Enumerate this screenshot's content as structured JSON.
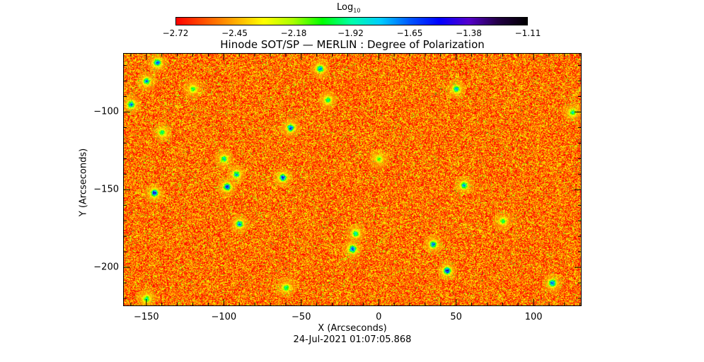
{
  "chart_data": {
    "type": "heatmap",
    "title": "Hinode SOT/SP — MERLIN : Degree of Polarization",
    "xlabel": "X (Arcseconds)",
    "ylabel": "Y (Arcseconds)",
    "xlim": [
      -165,
      131
    ],
    "ylim": [
      -225,
      -62
    ],
    "x_ticks": [
      -150,
      -100,
      -50,
      0,
      50,
      100
    ],
    "y_ticks": [
      -100,
      -150,
      -200
    ],
    "x_tick_labels": [
      "−150",
      "−100",
      "−50",
      "0",
      "50",
      "100"
    ],
    "y_tick_labels": [
      "−100",
      "−150",
      "−200"
    ],
    "colorbar": {
      "label_main": "Log",
      "label_sub": "10",
      "scale": "log10",
      "range": [
        -2.72,
        -1.11
      ],
      "ticks": [
        -2.72,
        -2.45,
        -2.18,
        -1.92,
        -1.65,
        -1.38,
        -1.11
      ],
      "tick_labels": [
        "−2.72",
        "−2.45",
        "−2.18",
        "−1.92",
        "−1.65",
        "−1.38",
        "−1.11"
      ],
      "colormap": [
        "#ff0000",
        "#ff5500",
        "#ffaa00",
        "#ffff00",
        "#aaff00",
        "#00ff00",
        "#00ffaa",
        "#00ccff",
        "#0055ff",
        "#0000ff",
        "#5500cc",
        "#220044",
        "#000000"
      ]
    },
    "background_level": -2.55,
    "features": [
      {
        "x": -143,
        "y": -68,
        "value": -1.4
      },
      {
        "x": -150,
        "y": -80,
        "value": -1.6
      },
      {
        "x": -160,
        "y": -95,
        "value": -1.5
      },
      {
        "x": -140,
        "y": -113,
        "value": -1.8
      },
      {
        "x": -145,
        "y": -152,
        "value": -1.3
      },
      {
        "x": -120,
        "y": -85,
        "value": -1.9
      },
      {
        "x": -100,
        "y": -130,
        "value": -1.7
      },
      {
        "x": -98,
        "y": -148,
        "value": -1.3
      },
      {
        "x": -92,
        "y": -140,
        "value": -1.6
      },
      {
        "x": -90,
        "y": -172,
        "value": -1.5
      },
      {
        "x": -62,
        "y": -142,
        "value": -1.35
      },
      {
        "x": -57,
        "y": -110,
        "value": -1.4
      },
      {
        "x": -38,
        "y": -72,
        "value": -1.5
      },
      {
        "x": -33,
        "y": -92,
        "value": -1.8
      },
      {
        "x": -15,
        "y": -178,
        "value": -1.7
      },
      {
        "x": -17,
        "y": -188,
        "value": -1.3
      },
      {
        "x": 35,
        "y": -185,
        "value": -1.5
      },
      {
        "x": 44,
        "y": -202,
        "value": -1.2
      },
      {
        "x": 50,
        "y": -85,
        "value": -1.6
      },
      {
        "x": 55,
        "y": -147,
        "value": -1.6
      },
      {
        "x": 80,
        "y": -170,
        "value": -1.9
      },
      {
        "x": 112,
        "y": -210,
        "value": -1.4
      },
      {
        "x": 125,
        "y": -100,
        "value": -1.8
      },
      {
        "x": -150,
        "y": -220,
        "value": -1.8
      },
      {
        "x": -60,
        "y": -213,
        "value": -1.8
      },
      {
        "x": 0,
        "y": -130,
        "value": -2.0
      }
    ]
  }
}
